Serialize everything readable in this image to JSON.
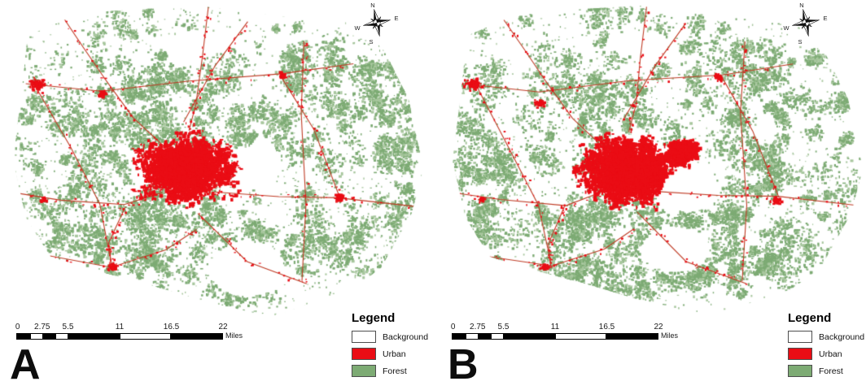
{
  "figure": {
    "description": "Two-panel land cover classification map comparison",
    "top_crop_line_color": "#474747",
    "map_colors": {
      "background": "#ffffff",
      "urban": "#ea0d15",
      "forest": "#7dab74",
      "forest_light": "#a8c79e",
      "road": "#bf3b24"
    },
    "panels": [
      {
        "label": "A",
        "compass": {
          "north": "N",
          "east": "E",
          "south": "S",
          "west": "W"
        },
        "scalebar": {
          "ticks": [
            "0",
            "2.75",
            "5.5",
            "11",
            "16.5",
            "22"
          ],
          "unit": "Miles"
        },
        "legend": {
          "title": "Legend",
          "items": [
            {
              "label": "Background",
              "color": "#ffffff"
            },
            {
              "label": "Urban",
              "color": "#ea0d15"
            },
            {
              "label": "Forest",
              "color": "#7dab74"
            }
          ]
        }
      },
      {
        "label": "B",
        "compass": {
          "north": "N",
          "east": "E",
          "south": "S",
          "west": "W"
        },
        "scalebar": {
          "ticks": [
            "0",
            "2.75",
            "5.5",
            "11",
            "16.5",
            "22"
          ],
          "unit": "Miles"
        },
        "legend": {
          "title": "Legend",
          "items": [
            {
              "label": "Background",
              "color": "#ffffff"
            },
            {
              "label": "Urban",
              "color": "#ea0d15"
            },
            {
              "label": "Forest",
              "color": "#7dab74"
            }
          ]
        }
      }
    ]
  }
}
